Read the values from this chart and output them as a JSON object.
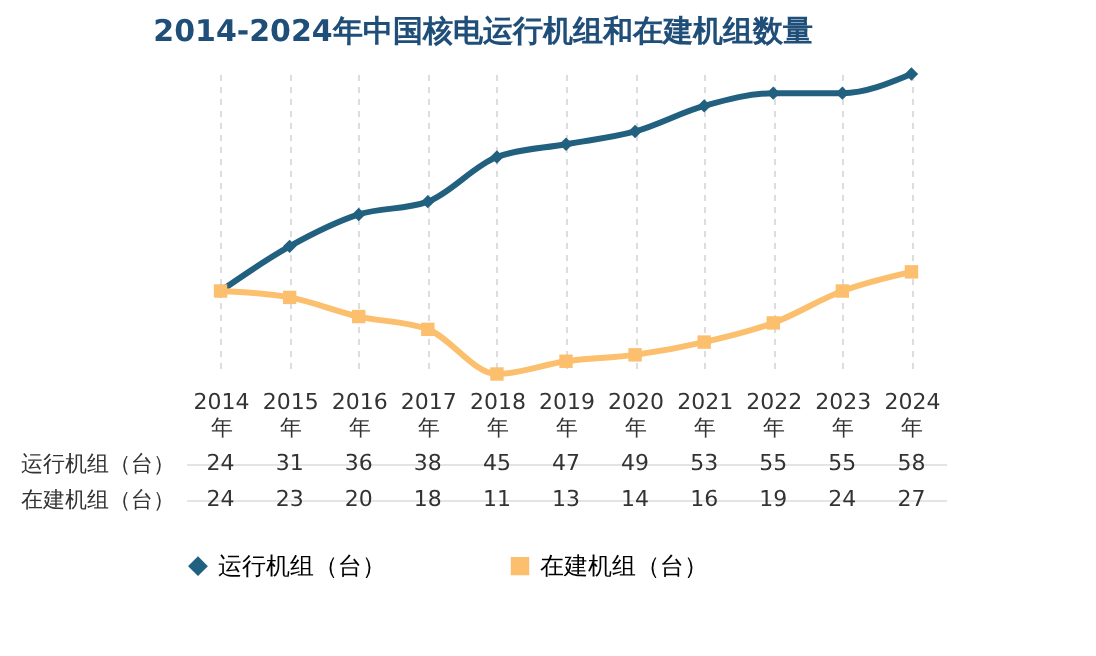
{
  "chart_data": {
    "type": "line",
    "title": "2014-2024年中国核电运行机组和在建机组数量",
    "categories": [
      "2014\n年",
      "2015\n年",
      "2016\n年",
      "2017\n年",
      "2018\n年",
      "2019\n年",
      "2020\n年",
      "2021\n年",
      "2022\n年",
      "2023\n年",
      "2024\n年"
    ],
    "series": [
      {
        "name": "运行机组（台）",
        "color": "#21607f",
        "marker": "diamond",
        "values": [
          24,
          31,
          36,
          38,
          45,
          47,
          49,
          53,
          55,
          55,
          58
        ]
      },
      {
        "name": "在建机组（台）",
        "color": "#fbbf6e",
        "marker": "square",
        "values": [
          24,
          23,
          20,
          18,
          11,
          13,
          14,
          16,
          19,
          24,
          27
        ]
      }
    ],
    "data_labels": true,
    "grid": "x",
    "legend": "bottom",
    "line_style": "solid"
  }
}
